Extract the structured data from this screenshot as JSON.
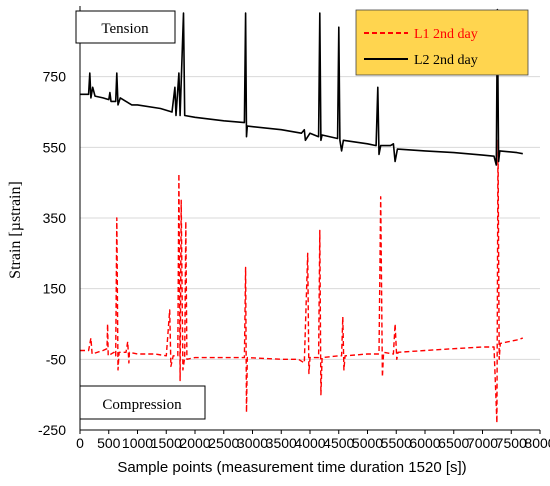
{
  "chart_data": {
    "type": "line",
    "title": "",
    "xlabel": "Sample points (measurement time duration 1520 [s])",
    "ylabel": "Strain [µstrain]",
    "xlim": [
      0,
      8000
    ],
    "ylim": [
      -250,
      950
    ],
    "x_ticks": [
      0,
      500,
      1000,
      1500,
      2000,
      2500,
      3000,
      3500,
      4000,
      4500,
      5000,
      5500,
      6000,
      6500,
      7000,
      7500,
      8000
    ],
    "y_ticks": [
      -250,
      -50,
      150,
      350,
      550,
      750
    ],
    "x_tick_labels": [
      "0",
      "500",
      "1000",
      "1500",
      "2000",
      "2500",
      "3000",
      "3500",
      "4000",
      "4500",
      "5000",
      "5500",
      "6000",
      "6500",
      "7000",
      "7500",
      "8000"
    ],
    "y_tick_labels": [
      "-250",
      "-50",
      "150",
      "350",
      "550",
      "750"
    ],
    "grid": "horizontal",
    "legend_position": "top-right",
    "annotations": [
      "Tension",
      "Compression"
    ],
    "series": [
      {
        "name": "L1 2nd day",
        "color": "#ff0000",
        "dash": "dashed",
        "points": [
          [
            0,
            -25
          ],
          [
            150,
            -25
          ],
          [
            190,
            10
          ],
          [
            210,
            -35
          ],
          [
            400,
            -25
          ],
          [
            470,
            -20
          ],
          [
            480,
            50
          ],
          [
            490,
            -40
          ],
          [
            590,
            -30
          ],
          [
            620,
            -40
          ],
          [
            640,
            350
          ],
          [
            660,
            -80
          ],
          [
            680,
            -30
          ],
          [
            800,
            -30
          ],
          [
            830,
            0
          ],
          [
            850,
            -60
          ],
          [
            860,
            -30
          ],
          [
            1000,
            -35
          ],
          [
            1300,
            -35
          ],
          [
            1500,
            -40
          ],
          [
            1560,
            90
          ],
          [
            1580,
            -70
          ],
          [
            1620,
            -40
          ],
          [
            1700,
            -40
          ],
          [
            1720,
            475
          ],
          [
            1740,
            -110
          ],
          [
            1760,
            400
          ],
          [
            1790,
            -80
          ],
          [
            1820,
            -45
          ],
          [
            1840,
            340
          ],
          [
            1860,
            -50
          ],
          [
            2000,
            -45
          ],
          [
            2500,
            -45
          ],
          [
            2860,
            -45
          ],
          [
            2880,
            210
          ],
          [
            2895,
            -200
          ],
          [
            2910,
            -45
          ],
          [
            3500,
            -50
          ],
          [
            3800,
            -50
          ],
          [
            3900,
            -60
          ],
          [
            3960,
            250
          ],
          [
            3980,
            -90
          ],
          [
            4000,
            -45
          ],
          [
            4150,
            -45
          ],
          [
            4170,
            315
          ],
          [
            4190,
            -150
          ],
          [
            4210,
            -45
          ],
          [
            4500,
            -40
          ],
          [
            4550,
            -40
          ],
          [
            4570,
            70
          ],
          [
            4590,
            -80
          ],
          [
            4610,
            -40
          ],
          [
            5000,
            -35
          ],
          [
            5200,
            -35
          ],
          [
            5230,
            410
          ],
          [
            5260,
            -100
          ],
          [
            5280,
            -30
          ],
          [
            5450,
            -35
          ],
          [
            5480,
            50
          ],
          [
            5510,
            -50
          ],
          [
            5530,
            -30
          ],
          [
            6000,
            -25
          ],
          [
            6500,
            -20
          ],
          [
            7000,
            -15
          ],
          [
            7200,
            -15
          ],
          [
            7250,
            -230
          ],
          [
            7270,
            570
          ],
          [
            7290,
            -50
          ],
          [
            7310,
            -5
          ],
          [
            7600,
            5
          ],
          [
            7700,
            10
          ]
        ]
      },
      {
        "name": "L2 2nd day",
        "color": "#000000",
        "dash": "solid",
        "points": [
          [
            0,
            700
          ],
          [
            150,
            700
          ],
          [
            170,
            760
          ],
          [
            190,
            690
          ],
          [
            220,
            720
          ],
          [
            260,
            695
          ],
          [
            400,
            690
          ],
          [
            500,
            685
          ],
          [
            520,
            705
          ],
          [
            540,
            680
          ],
          [
            620,
            680
          ],
          [
            640,
            760
          ],
          [
            660,
            670
          ],
          [
            700,
            690
          ],
          [
            800,
            680
          ],
          [
            900,
            670
          ],
          [
            1000,
            670
          ],
          [
            1400,
            660
          ],
          [
            1600,
            650
          ],
          [
            1650,
            720
          ],
          [
            1670,
            640
          ],
          [
            1720,
            760
          ],
          [
            1740,
            640
          ],
          [
            1800,
            930
          ],
          [
            1820,
            640
          ],
          [
            2000,
            635
          ],
          [
            2500,
            625
          ],
          [
            2860,
            620
          ],
          [
            2880,
            930
          ],
          [
            2895,
            580
          ],
          [
            2910,
            610
          ],
          [
            3500,
            600
          ],
          [
            3850,
            590
          ],
          [
            3900,
            600
          ],
          [
            3920,
            570
          ],
          [
            4000,
            590
          ],
          [
            4150,
            580
          ],
          [
            4170,
            930
          ],
          [
            4190,
            570
          ],
          [
            4210,
            585
          ],
          [
            4480,
            575
          ],
          [
            4500,
            890
          ],
          [
            4520,
            570
          ],
          [
            4550,
            540
          ],
          [
            4580,
            570
          ],
          [
            5000,
            560
          ],
          [
            5150,
            555
          ],
          [
            5180,
            720
          ],
          [
            5200,
            530
          ],
          [
            5230,
            555
          ],
          [
            5400,
            555
          ],
          [
            5450,
            560
          ],
          [
            5480,
            510
          ],
          [
            5520,
            545
          ],
          [
            6000,
            540
          ],
          [
            6500,
            535
          ],
          [
            7000,
            528
          ],
          [
            7200,
            525
          ],
          [
            7240,
            500
          ],
          [
            7260,
            940
          ],
          [
            7280,
            510
          ],
          [
            7300,
            540
          ],
          [
            7600,
            535
          ],
          [
            7700,
            532
          ]
        ]
      }
    ]
  },
  "annotations": {
    "tension": "Tension",
    "compression": "Compression"
  },
  "legend": {
    "background": "#ffd54f"
  },
  "colors": {
    "axis": "#000000",
    "grid": "#d9d9d9"
  }
}
